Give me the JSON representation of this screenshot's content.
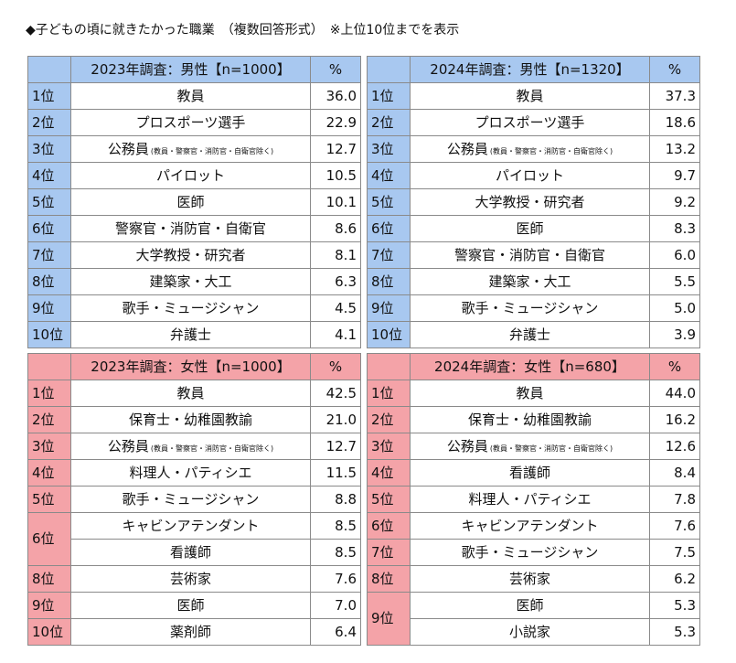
{
  "title": "◆子どもの頃に就きたかった職業　（複数回答形式）　※上位10位までを表示",
  "tables": [
    {
      "id": "t1",
      "group": "male",
      "header": "2023年調査：男性【n=1000】",
      "pct_header": "%",
      "rows": [
        {
          "rank": "1位",
          "job": "教員",
          "val": "36.0"
        },
        {
          "rank": "2位",
          "job": "プロスポーツ選手",
          "val": "22.9"
        },
        {
          "rank": "3位",
          "job": "公務員",
          "note": "(教員・警察官・消防官・自衛官除く)",
          "val": "12.7"
        },
        {
          "rank": "4位",
          "job": "パイロット",
          "val": "10.5"
        },
        {
          "rank": "5位",
          "job": "医師",
          "val": "10.1"
        },
        {
          "rank": "6位",
          "job": "警察官・消防官・自衛官",
          "val": "8.6"
        },
        {
          "rank": "7位",
          "job": "大学教授・研究者",
          "val": "8.1"
        },
        {
          "rank": "8位",
          "job": "建築家・大工",
          "val": "6.3"
        },
        {
          "rank": "9位",
          "job": "歌手・ミュージシャン",
          "val": "4.5"
        },
        {
          "rank": "10位",
          "job": "弁護士",
          "val": "4.1"
        }
      ]
    },
    {
      "id": "t2",
      "group": "male",
      "header": "2024年調査：男性【n=1320】",
      "pct_header": "%",
      "rows": [
        {
          "rank": "1位",
          "job": "教員",
          "val": "37.3"
        },
        {
          "rank": "2位",
          "job": "プロスポーツ選手",
          "val": "18.6"
        },
        {
          "rank": "3位",
          "job": "公務員",
          "note": "(教員・警察官・消防官・自衛官除く)",
          "val": "13.2"
        },
        {
          "rank": "4位",
          "job": "パイロット",
          "val": "9.7"
        },
        {
          "rank": "5位",
          "job": "大学教授・研究者",
          "val": "9.2"
        },
        {
          "rank": "6位",
          "job": "医師",
          "val": "8.3"
        },
        {
          "rank": "7位",
          "job": "警察官・消防官・自衛官",
          "val": "6.0"
        },
        {
          "rank": "8位",
          "job": "建築家・大工",
          "val": "5.5"
        },
        {
          "rank": "9位",
          "job": "歌手・ミュージシャン",
          "val": "5.0"
        },
        {
          "rank": "10位",
          "job": "弁護士",
          "val": "3.9"
        }
      ]
    },
    {
      "id": "t3",
      "group": "female",
      "header": "2023年調査：女性【n=1000】",
      "pct_header": "%",
      "rows": [
        {
          "rank": "1位",
          "job": "教員",
          "val": "42.5"
        },
        {
          "rank": "2位",
          "job": "保育士・幼稚園教諭",
          "val": "21.0"
        },
        {
          "rank": "3位",
          "job": "公務員",
          "note": "(教員・警察官・消防官・自衛官除く)",
          "val": "12.7"
        },
        {
          "rank": "4位",
          "job": "料理人・パティシエ",
          "val": "11.5"
        },
        {
          "rank": "5位",
          "job": "歌手・ミュージシャン",
          "val": "8.8"
        },
        {
          "rank": "6位",
          "rowspan": 2,
          "job": "キャビンアテンダント",
          "val": "8.5"
        },
        {
          "job": "看護師",
          "val": "8.5"
        },
        {
          "rank": "8位",
          "job": "芸術家",
          "val": "7.6"
        },
        {
          "rank": "9位",
          "job": "医師",
          "val": "7.0"
        },
        {
          "rank": "10位",
          "job": "薬剤師",
          "val": "6.4"
        }
      ]
    },
    {
      "id": "t4",
      "group": "female",
      "header": "2024年調査：女性【n=680】",
      "pct_header": "%",
      "rows": [
        {
          "rank": "1位",
          "job": "教員",
          "val": "44.0"
        },
        {
          "rank": "2位",
          "job": "保育士・幼稚園教諭",
          "val": "16.2"
        },
        {
          "rank": "3位",
          "job": "公務員",
          "note": "(教員・警察官・消防官・自衛官除く)",
          "val": "12.6"
        },
        {
          "rank": "4位",
          "job": "看護師",
          "val": "8.4"
        },
        {
          "rank": "5位",
          "job": "料理人・パティシエ",
          "val": "7.8"
        },
        {
          "rank": "6位",
          "job": "キャビンアテンダント",
          "val": "7.6"
        },
        {
          "rank": "7位",
          "job": "歌手・ミュージシャン",
          "val": "7.5"
        },
        {
          "rank": "8位",
          "job": "芸術家",
          "val": "6.2"
        },
        {
          "rank": "9位",
          "rowspan": 2,
          "job": "医師",
          "val": "5.3"
        },
        {
          "job": "小説家",
          "val": "5.3"
        }
      ]
    }
  ]
}
